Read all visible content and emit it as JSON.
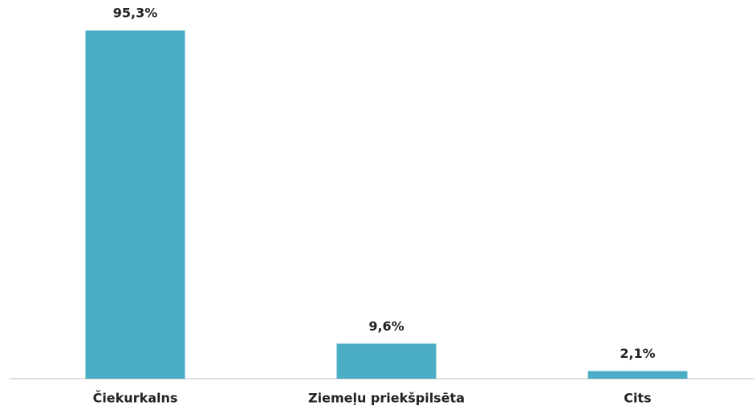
{
  "chart_data": {
    "type": "bar",
    "categories": [
      "Čiekurkalns",
      "Ziemeļu priekšpilsēta",
      "Cits"
    ],
    "values": [
      95.3,
      9.6,
      2.1
    ],
    "value_labels": [
      "95,3%",
      "9,6%",
      "2,1%"
    ],
    "color": "#4bacc6"
  }
}
